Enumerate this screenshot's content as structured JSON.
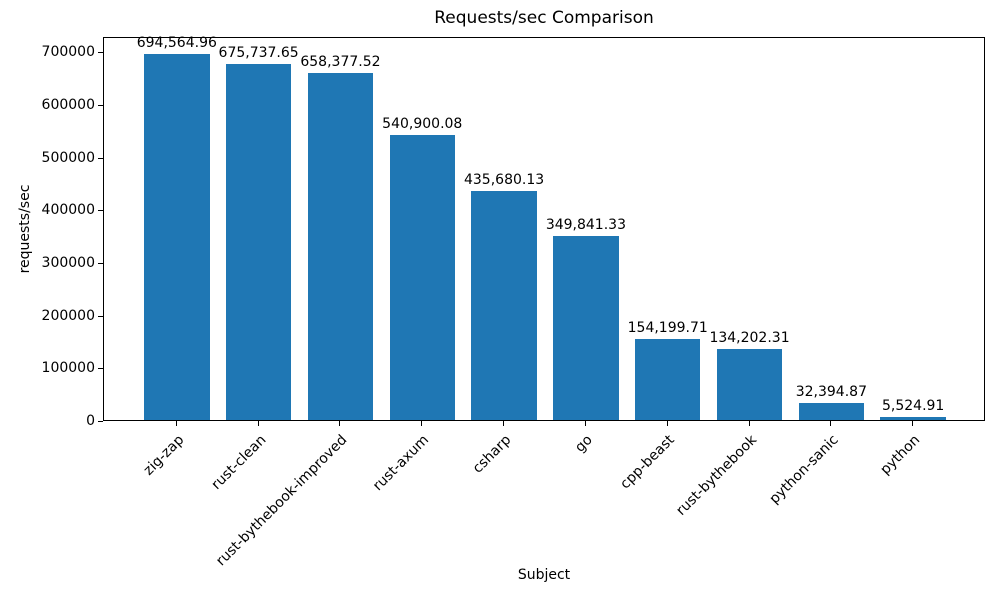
{
  "chart_data": {
    "type": "bar",
    "title": "Requests/sec Comparison",
    "xlabel": "Subject",
    "ylabel": "requests/sec",
    "categories": [
      "zig-zap",
      "rust-clean",
      "rust-bythebook-improved",
      "rust-axum",
      "csharp",
      "go",
      "cpp-beast",
      "rust-bythebook",
      "python-sanic",
      "python"
    ],
    "values": [
      694564.96,
      675737.65,
      658377.52,
      540900.08,
      435680.13,
      349841.33,
      154199.71,
      134202.31,
      32394.87,
      5524.91
    ],
    "value_labels": [
      "694,564.96",
      "675,737.65",
      "658,377.52",
      "540,900.08",
      "435,680.13",
      "349,841.33",
      "154,199.71",
      "134,202.31",
      "32,394.87",
      "5,524.91"
    ],
    "yticks": [
      0,
      100000,
      200000,
      300000,
      400000,
      500000,
      600000,
      700000
    ],
    "ytick_labels": [
      "0",
      "100000",
      "200000",
      "300000",
      "400000",
      "500000",
      "600000",
      "700000"
    ],
    "ylim": [
      0,
      729293
    ],
    "x_tick_rotation_deg": 45,
    "bar_color": "#1f77b4",
    "grid": false,
    "legend": "none",
    "background_color": "#ffffff"
  }
}
